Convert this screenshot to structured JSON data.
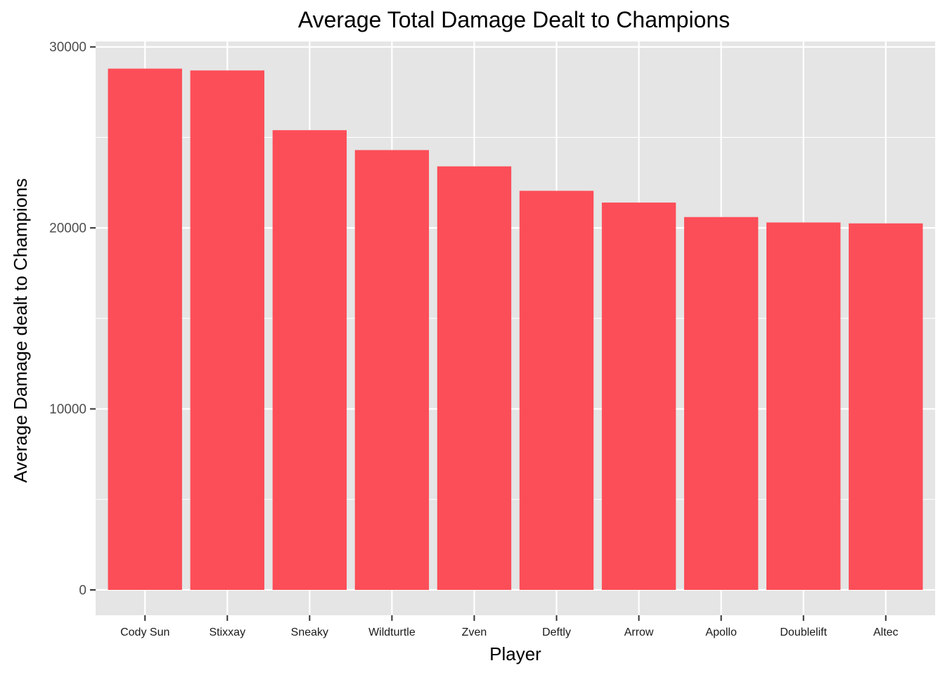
{
  "chart_data": {
    "type": "bar",
    "title": "Average Total Damage Dealt to Champions",
    "xlabel": "Player",
    "ylabel": "Average Damage dealt to Champions",
    "categories": [
      "Cody Sun",
      "Stixxay",
      "Sneaky",
      "Wildturtle",
      "Zven",
      "Deftly",
      "Arrow",
      "Apollo",
      "Doublelift",
      "Altec"
    ],
    "values": [
      28800,
      28700,
      25400,
      24300,
      23400,
      22050,
      21400,
      20600,
      20300,
      20250
    ],
    "ylim": [
      -1400,
      30300
    ],
    "yticks": [
      0,
      10000,
      20000,
      30000
    ],
    "ytick_labels": [
      "0",
      "10000",
      "20000",
      "30000"
    ],
    "grid": true,
    "bar_color": "#FC4E58",
    "panel_background": "#E5E5E5",
    "grid_color": "#FFFFFF"
  }
}
